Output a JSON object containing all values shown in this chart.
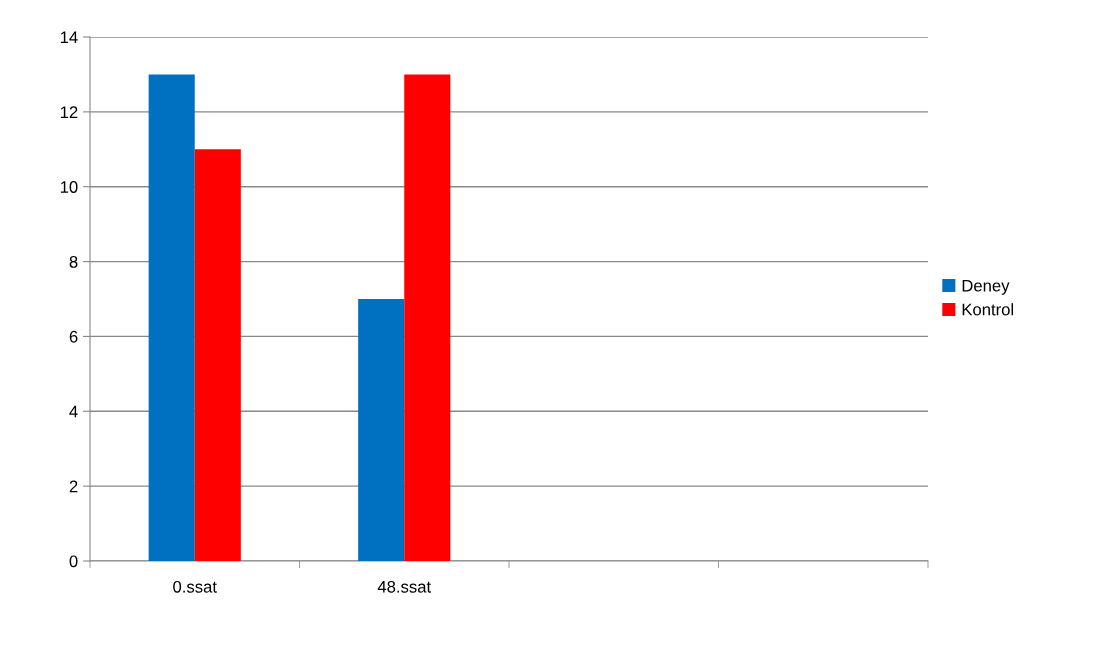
{
  "chart_data": {
    "type": "bar",
    "categories": [
      "0.ssat",
      "48.ssat",
      null,
      null
    ],
    "series": [
      {
        "name": "Deney",
        "color": "#0070c0",
        "values": [
          13,
          7,
          null,
          null
        ]
      },
      {
        "name": "Kontrol",
        "color": "#ff0000",
        "values": [
          11,
          13,
          null,
          null
        ]
      }
    ],
    "ylim": [
      0,
      14
    ],
    "yticks": [
      0,
      2,
      4,
      6,
      8,
      10,
      12,
      14
    ],
    "grid": "y",
    "legend": "right"
  }
}
